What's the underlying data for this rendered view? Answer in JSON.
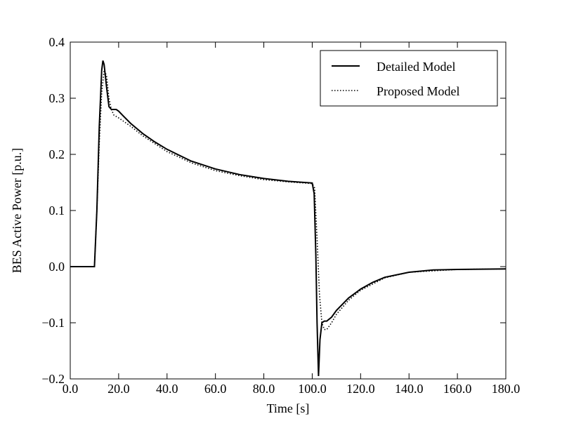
{
  "chart_data": {
    "type": "line",
    "xlabel": "Time [s]",
    "ylabel": "BES Active Power [p.u.]",
    "xlim": [
      0,
      180
    ],
    "ylim": [
      -0.2,
      0.4
    ],
    "xticks": [
      {
        "value": 0,
        "label": "0.0"
      },
      {
        "value": 20,
        "label": "20.0"
      },
      {
        "value": 40,
        "label": "40.0"
      },
      {
        "value": 60,
        "label": "60.0"
      },
      {
        "value": 80,
        "label": "80.0"
      },
      {
        "value": 100,
        "label": "100.0"
      },
      {
        "value": 120,
        "label": "120.0"
      },
      {
        "value": 140,
        "label": "140.0"
      },
      {
        "value": 160,
        "label": "160.0"
      },
      {
        "value": 180,
        "label": "180.0"
      }
    ],
    "yticks": [
      {
        "value": -0.2,
        "label": "−0.2"
      },
      {
        "value": -0.1,
        "label": "−0.1"
      },
      {
        "value": 0,
        "label": "0.0"
      },
      0.1,
      0.2,
      0.3,
      0.4
    ],
    "legend": "upper right",
    "series": [
      {
        "name": "Detailed Model",
        "color": "#000000",
        "linestyle": "solid",
        "x": [
          0,
          10,
          11,
          12,
          13,
          13.5,
          14,
          15,
          16,
          17,
          18,
          19,
          20,
          22,
          25,
          30,
          35,
          40,
          50,
          60,
          70,
          80,
          90,
          100,
          100.8,
          101.5,
          102,
          102.6,
          103.2,
          104,
          105,
          106,
          108,
          110,
          115,
          120,
          125,
          130,
          140,
          150,
          160,
          180
        ],
        "values": [
          0,
          0,
          0.1,
          0.25,
          0.35,
          0.367,
          0.36,
          0.32,
          0.285,
          0.28,
          0.28,
          0.28,
          0.277,
          0.268,
          0.255,
          0.237,
          0.222,
          0.209,
          0.188,
          0.174,
          0.164,
          0.157,
          0.152,
          0.149,
          0.13,
          0.02,
          -0.1,
          -0.195,
          -0.13,
          -0.1,
          -0.097,
          -0.097,
          -0.09,
          -0.078,
          -0.056,
          -0.04,
          -0.028,
          -0.019,
          -0.01,
          -0.006,
          -0.005,
          -0.004
        ]
      },
      {
        "name": "Proposed Model",
        "color": "#000000",
        "linestyle": "dotted",
        "x": [
          0,
          10,
          11,
          12,
          13,
          14,
          15,
          16,
          17,
          18,
          20,
          25,
          30,
          40,
          50,
          60,
          70,
          80,
          90,
          100,
          101,
          102,
          103,
          104,
          105,
          106,
          108,
          110,
          115,
          120,
          130,
          140,
          160,
          180
        ],
        "values": [
          0,
          0,
          0.1,
          0.22,
          0.31,
          0.35,
          0.34,
          0.3,
          0.28,
          0.27,
          0.265,
          0.25,
          0.233,
          0.205,
          0.185,
          0.171,
          0.162,
          0.155,
          0.151,
          0.148,
          0.14,
          0.05,
          -0.05,
          -0.1,
          -0.112,
          -0.112,
          -0.1,
          -0.085,
          -0.06,
          -0.042,
          -0.02,
          -0.01,
          -0.005,
          -0.004
        ]
      }
    ]
  }
}
